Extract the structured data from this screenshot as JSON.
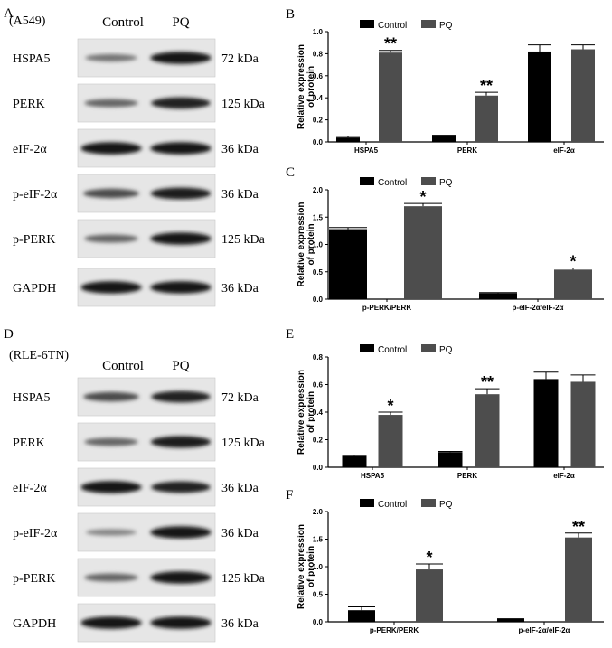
{
  "colors": {
    "control": "#000000",
    "pq": "#4d4d4d"
  },
  "blots": [
    {
      "letter": "A",
      "cell_line": "(A549)",
      "headers": [
        "Control",
        "PQ"
      ],
      "rows": [
        {
          "label": "HSPA5",
          "size": "72 kDa",
          "control": 0.35,
          "pq": 0.95
        },
        {
          "label": "PERK",
          "size": "125 kDa",
          "control": 0.45,
          "pq": 0.85
        },
        {
          "label": "eIF-2α",
          "size": "36 kDa",
          "control": 0.95,
          "pq": 0.95
        },
        {
          "label": "p-eIF-2α",
          "size": "36 kDa",
          "control": 0.6,
          "pq": 0.9
        },
        {
          "label": "p-PERK",
          "size": "125 kDa",
          "control": 0.45,
          "pq": 0.95
        },
        {
          "label": "GAPDH",
          "size": "36 kDa",
          "control": 0.95,
          "pq": 0.95
        }
      ]
    },
    {
      "letter": "D",
      "cell_line": "(RLE-6TN)",
      "headers": [
        "Control",
        "PQ"
      ],
      "rows": [
        {
          "label": "HSPA5",
          "size": "72 kDa",
          "control": 0.6,
          "pq": 0.85
        },
        {
          "label": "PERK",
          "size": "125 kDa",
          "control": 0.45,
          "pq": 0.9
        },
        {
          "label": "eIF-2α",
          "size": "36 kDa",
          "control": 0.95,
          "pq": 0.85
        },
        {
          "label": "p-eIF-2α",
          "size": "36 kDa",
          "control": 0.25,
          "pq": 0.95
        },
        {
          "label": "p-PERK",
          "size": "125 kDa",
          "control": 0.45,
          "pq": 0.95
        },
        {
          "label": "GAPDH",
          "size": "36 kDa",
          "control": 0.95,
          "pq": 0.95
        }
      ]
    }
  ],
  "chart_data": [
    {
      "panel": "B",
      "type": "bar",
      "categories": [
        "HSPA5",
        "PERK",
        "eIF-2α"
      ],
      "series": [
        {
          "name": "Control",
          "values": [
            0.04,
            0.05,
            0.82
          ],
          "errors": [
            0.01,
            0.01,
            0.06
          ]
        },
        {
          "name": "PQ",
          "values": [
            0.81,
            0.42,
            0.84
          ],
          "errors": [
            0.02,
            0.03,
            0.04
          ]
        }
      ],
      "significance": [
        "**",
        "**",
        ""
      ],
      "ylabel": "Relative expression of protein",
      "ylim": [
        0,
        1.0
      ],
      "yticks": [
        "0.0",
        "0.2",
        "0.4",
        "0.6",
        "0.8",
        "1.0"
      ],
      "legend": "top"
    },
    {
      "panel": "C",
      "type": "bar",
      "categories": [
        "p-PERK/PERK",
        "p-eIF-2α/eIF-2α"
      ],
      "series": [
        {
          "name": "Control",
          "values": [
            1.28,
            0.11
          ],
          "errors": [
            0.03,
            0.01
          ]
        },
        {
          "name": "PQ",
          "values": [
            1.7,
            0.54
          ],
          "errors": [
            0.05,
            0.03
          ]
        }
      ],
      "significance": [
        "*",
        "*"
      ],
      "ylabel": "Relative expression of protein",
      "ylim": [
        0,
        2.0
      ],
      "yticks": [
        "0.0",
        "0.5",
        "1.0",
        "1.5",
        "2.0"
      ],
      "legend": "top"
    },
    {
      "panel": "E",
      "type": "bar",
      "categories": [
        "HSPA5",
        "PERK",
        "eIF-2α"
      ],
      "series": [
        {
          "name": "Control",
          "values": [
            0.08,
            0.11,
            0.64
          ],
          "errors": [
            0.005,
            0.005,
            0.05
          ]
        },
        {
          "name": "PQ",
          "values": [
            0.38,
            0.53,
            0.62
          ],
          "errors": [
            0.02,
            0.04,
            0.05
          ]
        }
      ],
      "significance": [
        "*",
        "**",
        ""
      ],
      "ylabel": "Relative expression of protein",
      "ylim": [
        0,
        0.8
      ],
      "yticks": [
        "0.0",
        "0.2",
        "0.4",
        "0.6",
        "0.8"
      ],
      "legend": "top"
    },
    {
      "panel": "F",
      "type": "bar",
      "categories": [
        "p-PERK/PERK",
        "p-eIF-2α/eIF-2α"
      ],
      "series": [
        {
          "name": "Control",
          "values": [
            0.21,
            0.05
          ],
          "errors": [
            0.06,
            0.005
          ]
        },
        {
          "name": "PQ",
          "values": [
            0.95,
            1.53
          ],
          "errors": [
            0.1,
            0.08
          ]
        }
      ],
      "significance": [
        "*",
        "**"
      ],
      "ylabel": "Relative expression of protein",
      "ylim": [
        0,
        2.0
      ],
      "yticks": [
        "0.0",
        "0.5",
        "1.0",
        "1.5",
        "2.0"
      ],
      "legend": "top"
    }
  ]
}
